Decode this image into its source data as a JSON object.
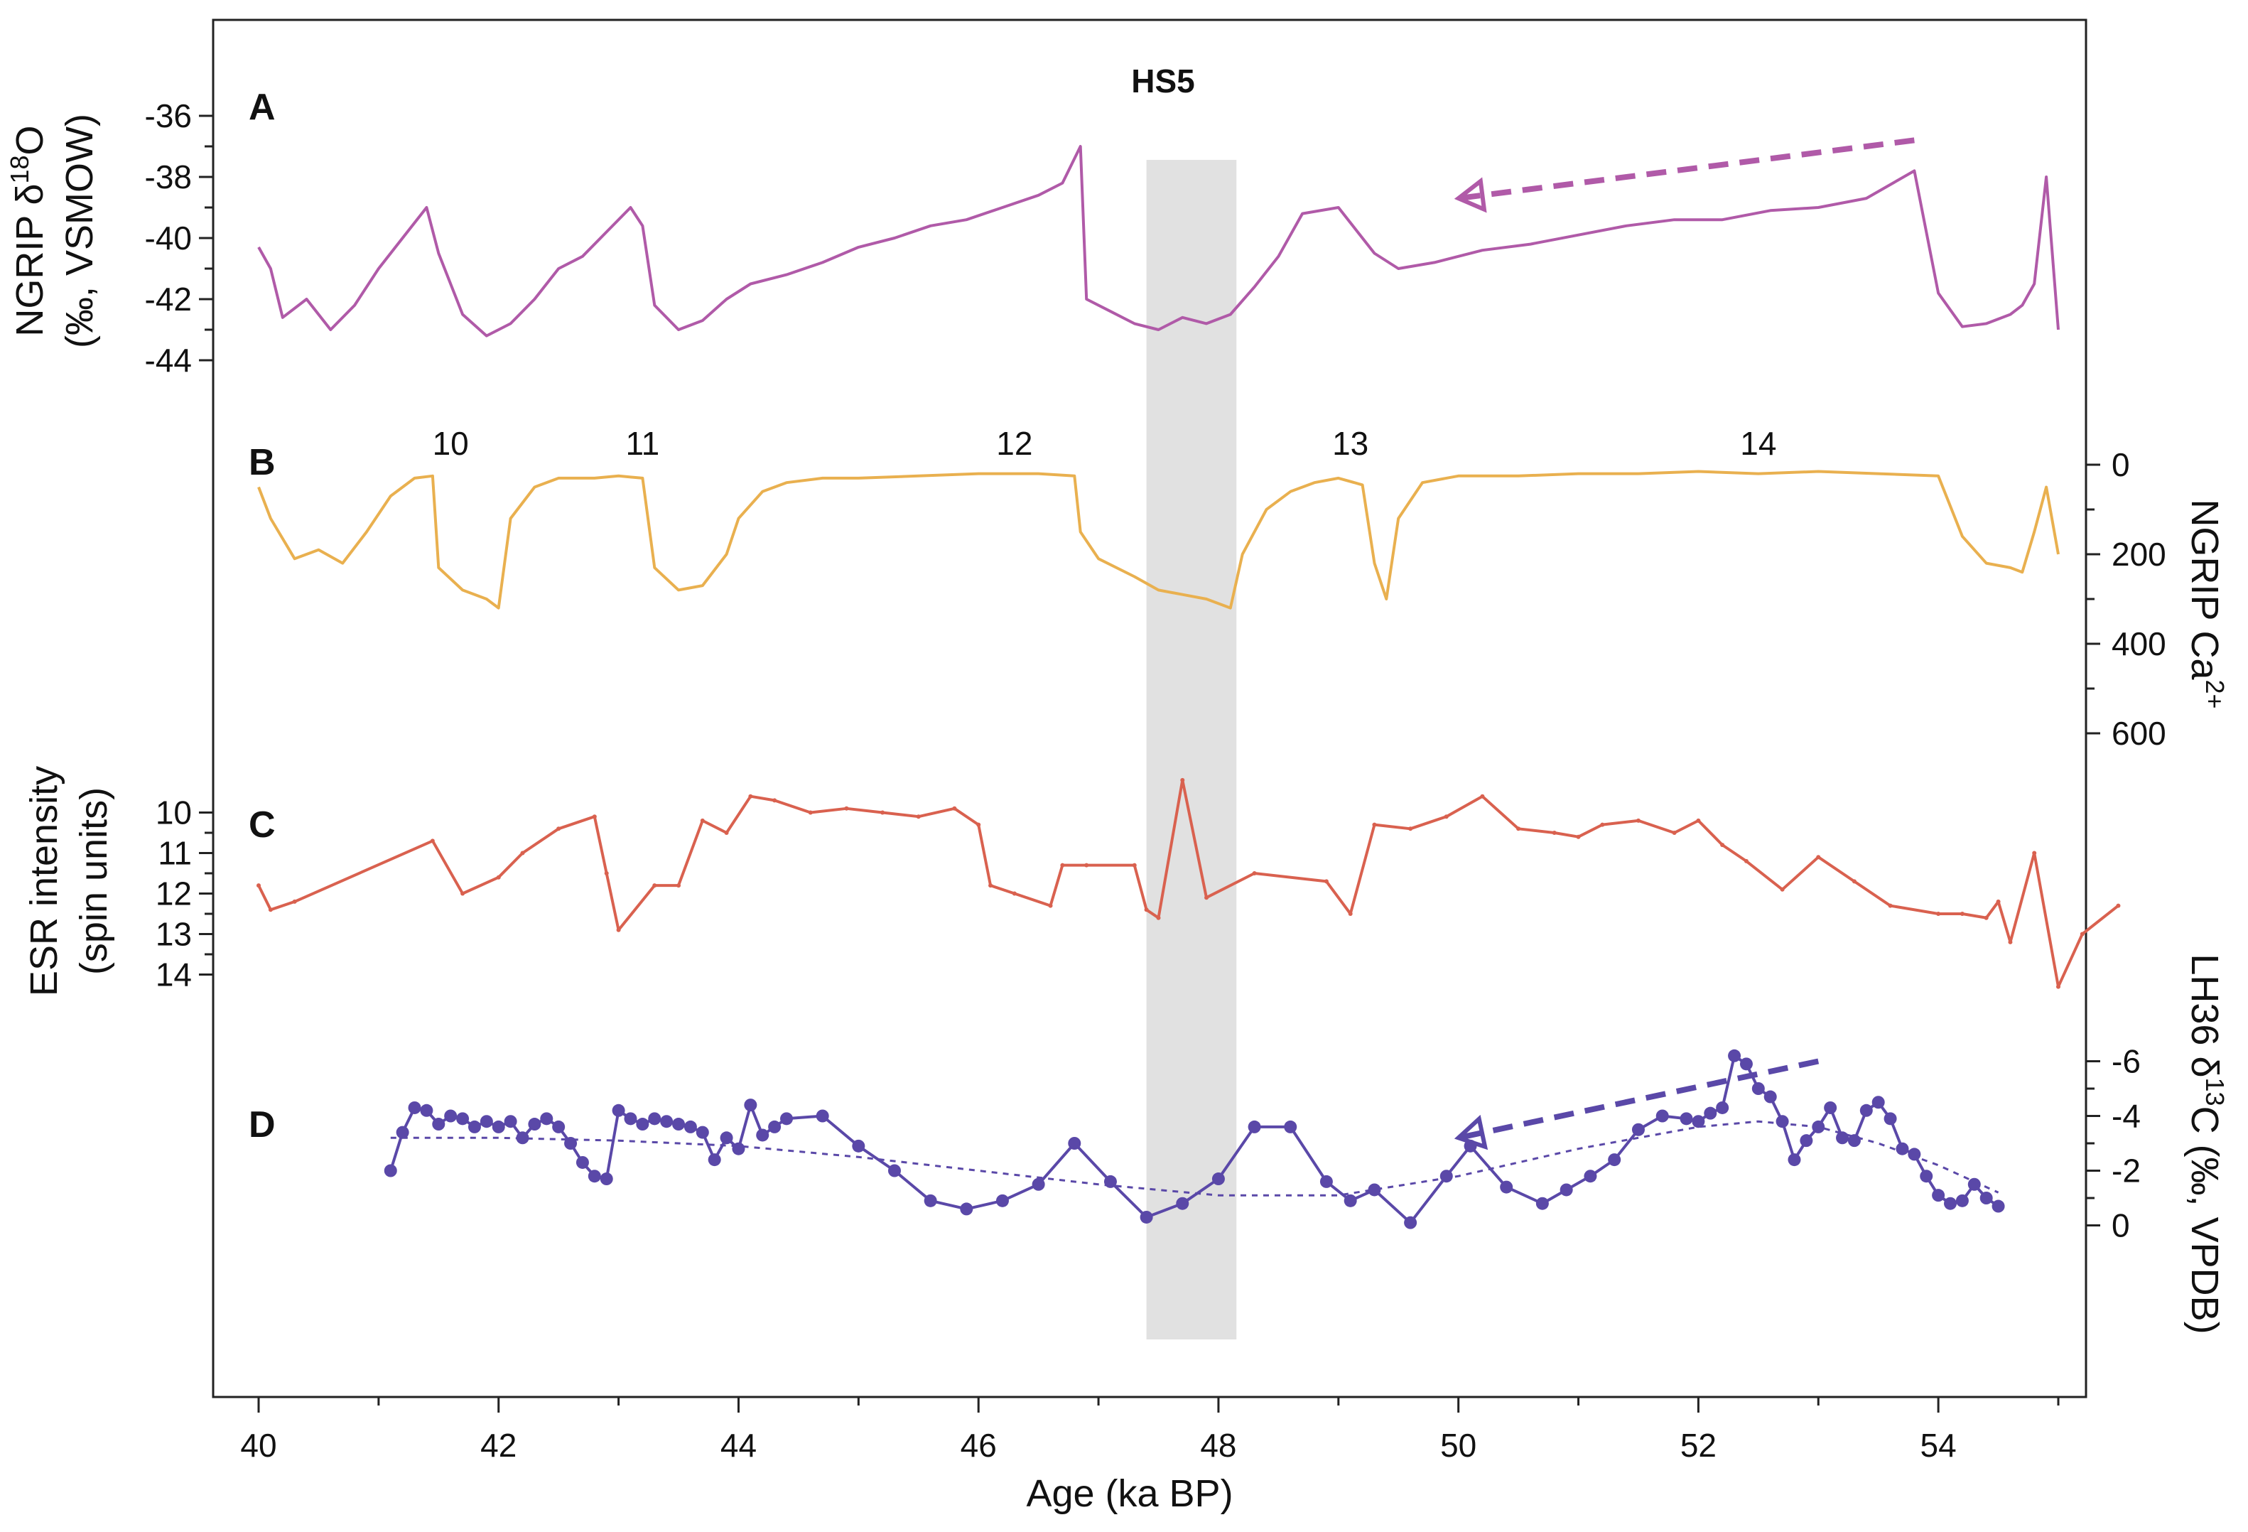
{
  "chart_data": {
    "type": "line",
    "xlabel": "Age (ka BP)",
    "xlim": [
      39.6,
      55.8
    ],
    "x_ticks": [
      "40",
      "42",
      "44",
      "46",
      "48",
      "50",
      "52",
      "54"
    ],
    "shaded_interval": {
      "label": "HS5",
      "x_range": [
        47.4,
        48.15
      ]
    },
    "interstadials": [
      {
        "label": "10",
        "x": 41.6
      },
      {
        "label": "11",
        "x": 43.2
      },
      {
        "label": "12",
        "x": 46.3
      },
      {
        "label": "13",
        "x": 49.1
      },
      {
        "label": "14",
        "x": 52.5
      }
    ],
    "panels": [
      {
        "id": "A",
        "label": "A",
        "name": "NGRIP δ18O",
        "ylabel_line1": "NGRIP δ",
        "ylabel_sup": "18",
        "ylabel_line1_end": "O",
        "ylabel_line2": "(‰, VSMOW)",
        "axis_side": "left",
        "ylim": [
          -45,
          -35
        ],
        "y_ticks": [
          "-36",
          "-38",
          "-40",
          "-42",
          "-44"
        ],
        "color": "#b05aa8",
        "x": [
          40.0,
          40.1,
          40.2,
          40.4,
          40.6,
          40.8,
          41.0,
          41.2,
          41.4,
          41.5,
          41.7,
          41.9,
          42.1,
          42.3,
          42.5,
          42.7,
          42.9,
          43.1,
          43.2,
          43.3,
          43.5,
          43.7,
          43.9,
          44.1,
          44.4,
          44.7,
          45.0,
          45.3,
          45.6,
          45.9,
          46.2,
          46.5,
          46.7,
          46.85,
          46.9,
          47.1,
          47.3,
          47.5,
          47.7,
          47.9,
          48.1,
          48.3,
          48.5,
          48.7,
          49.0,
          49.3,
          49.5,
          49.8,
          50.2,
          50.6,
          51.0,
          51.4,
          51.8,
          52.2,
          52.6,
          53.0,
          53.4,
          53.8,
          54.0,
          54.2,
          54.4,
          54.6,
          54.7,
          54.8,
          54.9,
          55.0
        ],
        "values": [
          -40.3,
          -41.0,
          -42.6,
          -42.0,
          -43.0,
          -42.2,
          -41.0,
          -40.0,
          -39.0,
          -40.5,
          -42.5,
          -43.2,
          -42.8,
          -42.0,
          -41.0,
          -40.6,
          -39.8,
          -39.0,
          -39.6,
          -42.2,
          -43.0,
          -42.7,
          -42.0,
          -41.5,
          -41.2,
          -40.8,
          -40.3,
          -40.0,
          -39.6,
          -39.4,
          -39.0,
          -38.6,
          -38.2,
          -37.0,
          -42.0,
          -42.4,
          -42.8,
          -43.0,
          -42.6,
          -42.8,
          -42.5,
          -41.6,
          -40.6,
          -39.2,
          -39.0,
          -40.5,
          -41.0,
          -40.8,
          -40.4,
          -40.2,
          -39.9,
          -39.6,
          -39.4,
          -39.4,
          -39.1,
          -39.0,
          -38.7,
          -37.8,
          -41.8,
          -42.9,
          -42.8,
          -42.5,
          -42.2,
          -41.5,
          -38.0,
          -43.0
        ],
        "trend_arrow": {
          "from": [
            53.8,
            -36.8
          ],
          "to": [
            50.0,
            -38.7
          ]
        }
      },
      {
        "id": "B",
        "label": "B",
        "name": "NGRIP Ca2+",
        "ylabel_line1": "NGRIP Ca",
        "ylabel_sup": "2+",
        "axis_side": "right",
        "ylim": [
          0,
          600
        ],
        "inverted": true,
        "y_ticks": [
          "0",
          "200",
          "400",
          "600"
        ],
        "color": "#e9b04f",
        "x": [
          40.0,
          40.1,
          40.3,
          40.5,
          40.7,
          40.9,
          41.1,
          41.3,
          41.45,
          41.5,
          41.7,
          41.9,
          42.0,
          42.1,
          42.3,
          42.5,
          42.8,
          43.0,
          43.2,
          43.3,
          43.5,
          43.7,
          43.9,
          44.0,
          44.2,
          44.4,
          44.7,
          45.0,
          45.5,
          46.0,
          46.5,
          46.8,
          46.85,
          47.0,
          47.3,
          47.5,
          47.7,
          47.9,
          48.1,
          48.2,
          48.4,
          48.6,
          48.8,
          49.0,
          49.2,
          49.3,
          49.4,
          49.5,
          49.7,
          50.0,
          50.5,
          51.0,
          51.5,
          52.0,
          52.5,
          53.0,
          53.5,
          54.0,
          54.2,
          54.4,
          54.6,
          54.7,
          54.8,
          54.9,
          55.0
        ],
        "values": [
          50,
          120,
          210,
          190,
          220,
          150,
          70,
          30,
          25,
          230,
          280,
          300,
          320,
          120,
          50,
          30,
          30,
          25,
          30,
          230,
          280,
          270,
          200,
          120,
          60,
          40,
          30,
          30,
          25,
          20,
          20,
          25,
          150,
          210,
          250,
          280,
          290,
          300,
          320,
          200,
          100,
          60,
          40,
          30,
          45,
          220,
          300,
          120,
          40,
          25,
          25,
          20,
          20,
          15,
          20,
          15,
          20,
          25,
          160,
          220,
          230,
          240,
          150,
          50,
          200
        ]
      },
      {
        "id": "C",
        "label": "C",
        "name": "ESR intensity",
        "ylabel_line1": "ESR intensity",
        "ylabel_line2": "(spin units)",
        "axis_side": "left",
        "ylim": [
          9.5,
          14.5
        ],
        "inverted": true,
        "y_ticks": [
          "10",
          "11",
          "12",
          "13",
          "14"
        ],
        "color": "#d9614f",
        "x": [
          40.0,
          40.1,
          40.3,
          41.45,
          41.7,
          42.0,
          42.2,
          42.5,
          42.8,
          42.9,
          43.0,
          43.3,
          43.5,
          43.7,
          43.9,
          44.1,
          44.3,
          44.6,
          44.9,
          45.2,
          45.5,
          45.8,
          46.0,
          46.1,
          46.3,
          46.6,
          46.7,
          46.9,
          47.3,
          47.4,
          47.5,
          47.7,
          47.9,
          48.3,
          48.9,
          49.1,
          49.3,
          49.6,
          49.9,
          50.2,
          50.5,
          50.8,
          51.0,
          51.2,
          51.5,
          51.8,
          52.0,
          52.2,
          52.4,
          52.7,
          53.0,
          53.3,
          53.6,
          54.0,
          54.2,
          54.4,
          54.5,
          54.6,
          54.8,
          55.0,
          55.2,
          55.5
        ],
        "values": [
          11.8,
          12.4,
          12.2,
          10.7,
          12.0,
          11.6,
          11.0,
          10.4,
          10.1,
          11.5,
          12.9,
          11.8,
          11.8,
          10.2,
          10.5,
          9.6,
          9.7,
          10.0,
          9.9,
          10.0,
          10.1,
          9.9,
          10.3,
          11.8,
          12.0,
          12.3,
          11.3,
          11.3,
          11.3,
          12.4,
          12.6,
          9.2,
          12.1,
          11.5,
          11.7,
          12.5,
          10.3,
          10.4,
          10.1,
          9.6,
          10.4,
          10.5,
          10.6,
          10.3,
          10.2,
          10.5,
          10.2,
          10.8,
          11.2,
          11.9,
          11.1,
          11.7,
          12.3,
          12.5,
          12.5,
          12.6,
          12.2,
          13.2,
          11.0,
          14.3,
          13.0,
          12.3
        ]
      },
      {
        "id": "D",
        "label": "D",
        "name": "LH36 δ13C",
        "ylabel_line1": "LH36 δ",
        "ylabel_sup": "13",
        "ylabel_line1_end": "C (‰, VPDB)",
        "axis_side": "right",
        "ylim": [
          -7,
          1
        ],
        "inverted": true,
        "y_ticks": [
          "-6",
          "-4",
          "-2",
          "0"
        ],
        "color": "#5a48a8",
        "x": [
          41.1,
          41.2,
          41.3,
          41.4,
          41.5,
          41.6,
          41.7,
          41.8,
          41.9,
          42.0,
          42.1,
          42.2,
          42.3,
          42.4,
          42.5,
          42.6,
          42.7,
          42.8,
          42.9,
          43.0,
          43.1,
          43.2,
          43.3,
          43.4,
          43.5,
          43.6,
          43.7,
          43.8,
          43.9,
          44.0,
          44.1,
          44.2,
          44.3,
          44.4,
          44.7,
          45.0,
          45.3,
          45.6,
          45.9,
          46.2,
          46.5,
          46.8,
          47.1,
          47.4,
          47.7,
          48.0,
          48.3,
          48.6,
          48.9,
          49.1,
          49.3,
          49.6,
          49.9,
          50.1,
          50.4,
          50.7,
          50.9,
          51.1,
          51.3,
          51.5,
          51.7,
          51.9,
          52.0,
          52.1,
          52.2,
          52.3,
          52.4,
          52.5,
          52.6,
          52.7,
          52.8,
          52.9,
          53.0,
          53.1,
          53.2,
          53.3,
          53.4,
          53.5,
          53.6,
          53.7,
          53.8,
          53.9,
          54.0,
          54.1,
          54.2,
          54.3,
          54.4,
          54.5
        ],
        "values": [
          -2.0,
          -3.4,
          -4.3,
          -4.2,
          -3.7,
          -4.0,
          -3.9,
          -3.6,
          -3.8,
          -3.6,
          -3.8,
          -3.2,
          -3.7,
          -3.9,
          -3.6,
          -3.0,
          -2.3,
          -1.8,
          -1.7,
          -4.2,
          -3.9,
          -3.7,
          -3.9,
          -3.8,
          -3.7,
          -3.6,
          -3.4,
          -2.4,
          -3.2,
          -2.8,
          -4.4,
          -3.3,
          -3.6,
          -3.9,
          -4.0,
          -2.9,
          -2.0,
          -0.9,
          -0.6,
          -0.9,
          -1.5,
          -3.0,
          -1.6,
          -0.3,
          -0.8,
          -1.7,
          -3.6,
          -3.6,
          -1.6,
          -0.9,
          -1.3,
          -0.1,
          -1.8,
          -2.9,
          -1.4,
          -0.8,
          -1.3,
          -1.8,
          -2.4,
          -3.5,
          -4.0,
          -3.9,
          -3.8,
          -4.1,
          -4.3,
          -6.2,
          -5.9,
          -5.0,
          -4.7,
          -3.8,
          -2.4,
          -3.1,
          -3.6,
          -4.3,
          -3.2,
          -3.1,
          -4.2,
          -4.5,
          -3.9,
          -2.8,
          -2.6,
          -1.8,
          -1.1,
          -0.8,
          -0.9,
          -1.5,
          -1.0,
          -0.7
        ],
        "trend_x": [
          41.1,
          42.0,
          43.0,
          44.0,
          45.0,
          46.0,
          47.0,
          48.0,
          49.0,
          50.0,
          51.0,
          52.0,
          52.5,
          53.0,
          53.5,
          54.0,
          54.5
        ],
        "trend_values": [
          -3.2,
          -3.2,
          -3.1,
          -2.9,
          -2.5,
          -2.0,
          -1.5,
          -1.1,
          -1.1,
          -1.8,
          -2.8,
          -3.6,
          -3.8,
          -3.6,
          -3.0,
          -2.2,
          -1.2
        ],
        "trend_arrow": {
          "from": [
            53.0,
            -6.0
          ],
          "to": [
            50.0,
            -3.2
          ]
        }
      }
    ]
  }
}
